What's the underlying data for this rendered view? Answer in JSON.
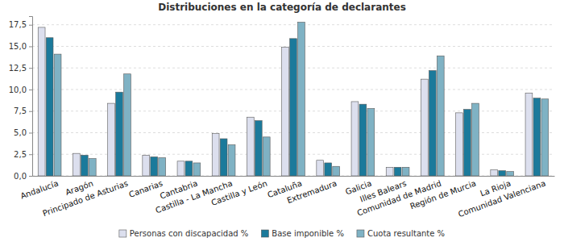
{
  "chart_data": {
    "type": "bar",
    "title": "Distribuciones en la categoría de declarantes",
    "categories": [
      "Andalucía",
      "Aragón",
      "Principado de Asturias",
      "Canarias",
      "Cantabria",
      "Castilla - La Mancha",
      "Castilla y León",
      "Cataluña",
      "Extremadura",
      "Galicia",
      "Illes Balears",
      "Comunidad de Madrid",
      "Región de Murcia",
      "La Rioja",
      "Comunidad Valenciana"
    ],
    "series": [
      {
        "name": "Personas con discapacidad %",
        "color": "#dcdfee",
        "values": [
          17.2,
          2.6,
          8.4,
          2.4,
          1.7,
          4.9,
          6.8,
          14.9,
          1.8,
          8.6,
          1.0,
          11.2,
          7.3,
          0.7,
          9.6
        ]
      },
      {
        "name": "Base imponible %",
        "color": "#1b7a9b",
        "values": [
          16.0,
          2.4,
          9.7,
          2.2,
          1.7,
          4.3,
          6.4,
          15.9,
          1.5,
          8.3,
          1.0,
          12.2,
          7.7,
          0.6,
          9.0
        ]
      },
      {
        "name": "Cuota resultante %",
        "color": "#7fb2c4",
        "values": [
          14.1,
          2.0,
          11.8,
          2.1,
          1.5,
          3.6,
          4.5,
          17.8,
          1.1,
          7.8,
          1.0,
          13.9,
          8.4,
          0.5,
          8.9
        ]
      }
    ],
    "ylim": [
      0,
      18.5
    ],
    "yticks": [
      {
        "value": 0,
        "label": "0,0"
      },
      {
        "value": 2.5,
        "label": "2,5"
      },
      {
        "value": 5,
        "label": "5,0"
      },
      {
        "value": 7.5,
        "label": "7,5"
      },
      {
        "value": 10,
        "label": "10,0"
      },
      {
        "value": 12.5,
        "label": "12,5"
      },
      {
        "value": 15,
        "label": "15,0"
      },
      {
        "value": 17.5,
        "label": "17,5"
      }
    ],
    "grid": true,
    "legend": "bottom"
  }
}
